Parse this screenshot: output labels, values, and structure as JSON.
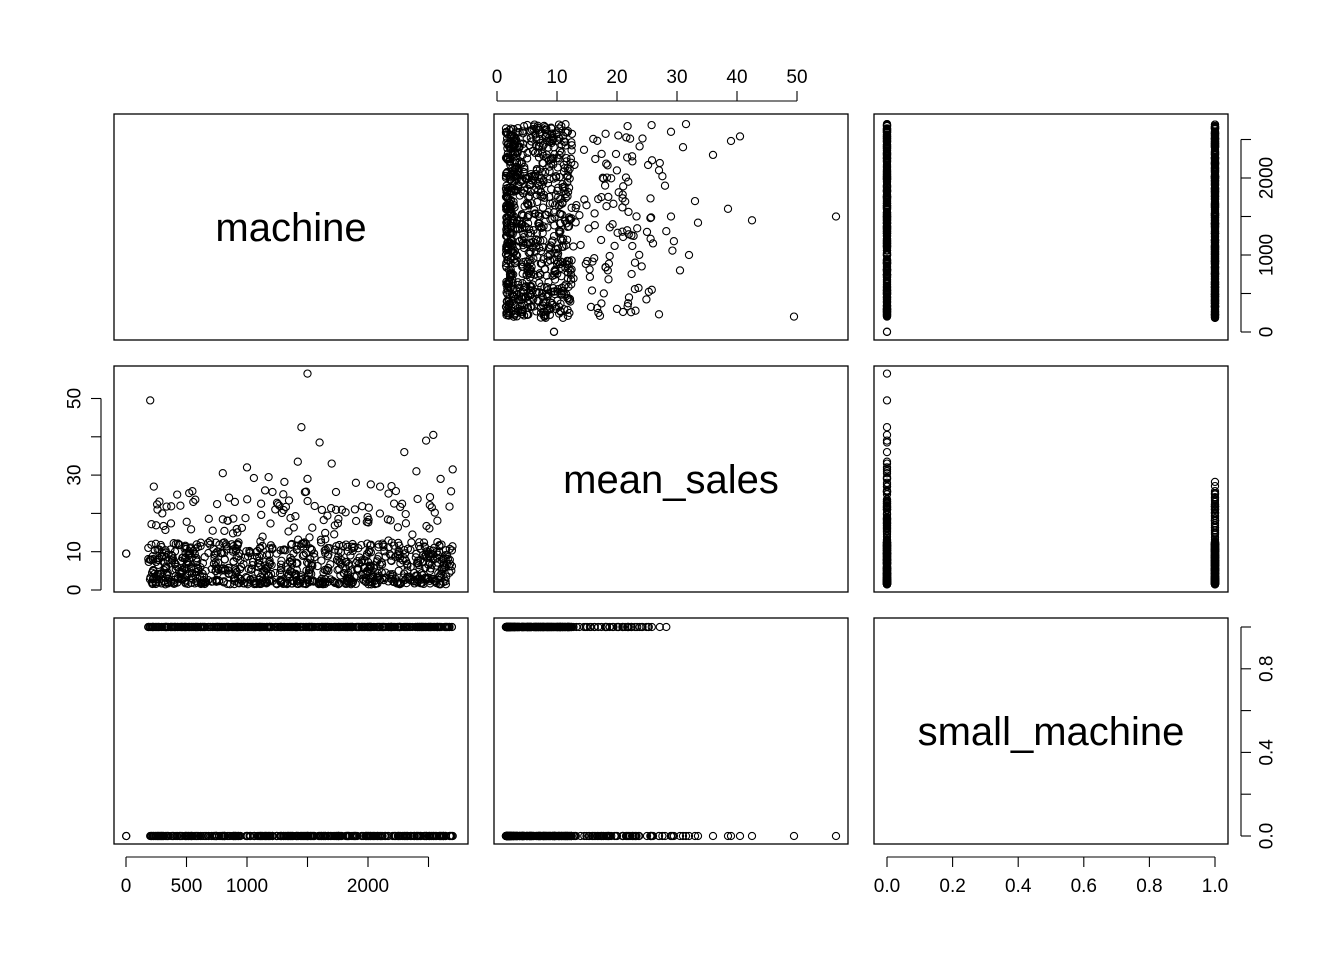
{
  "chart_data": {
    "type": "scatter",
    "variables": [
      "machine",
      "mean_sales",
      "small_machine"
    ],
    "axes": {
      "machine": {
        "range": [
          0,
          2720
        ],
        "ticks": [
          0,
          500,
          1000,
          2000
        ],
        "tick_labels": [
          "0",
          "500",
          "1000",
          "2000"
        ]
      },
      "machine_right": {
        "ticks": [
          0,
          500,
          1000,
          1500,
          2000,
          2500
        ],
        "tick_labels": [
          "0",
          "1000",
          "2000"
        ],
        "labeled_ticks": [
          0,
          1000,
          2000
        ]
      },
      "mean_sales": {
        "range": [
          0,
          57
        ],
        "ticks": [
          0,
          10,
          20,
          30,
          40,
          50
        ],
        "tick_labels": [
          "0",
          "10",
          "20",
          "30",
          "40",
          "50"
        ]
      },
      "mean_sales_left": {
        "ticks": [
          0,
          10,
          20,
          30,
          40,
          50
        ],
        "labeled_ticks": [
          0,
          10,
          30,
          50
        ],
        "tick_labels": [
          "0",
          "10",
          "30",
          "50"
        ]
      },
      "small_machine": {
        "range": [
          0,
          1
        ],
        "ticks": [
          0,
          0.2,
          0.4,
          0.6,
          0.8,
          1.0
        ],
        "tick_labels": [
          "0.0",
          "0.2",
          "0.4",
          "0.6",
          "0.8",
          "1.0"
        ]
      }
    },
    "diagonal_labels": [
      "machine",
      "mean_sales",
      "small_machine"
    ],
    "observations_sample": {
      "note_free": true,
      "machine": [
        2,
        180,
        190,
        195,
        200,
        230,
        260,
        300,
        400,
        500,
        640,
        800,
        900,
        1000,
        1100,
        1260,
        1400,
        1450,
        1500,
        1520,
        1600,
        1800,
        2100,
        2300,
        2480,
        2540,
        2600,
        2640,
        2700
      ],
      "mean_sales": [
        9.5,
        49.5,
        27,
        5,
        6.8,
        3,
        8,
        4.5,
        12,
        6,
        22.5,
        30,
        8,
        21,
        26,
        35,
        56,
        43,
        29,
        38,
        11,
        33,
        36,
        9,
        39,
        40,
        30,
        22,
        14
      ],
      "small_machine": [
        0,
        0,
        1,
        1,
        0,
        1,
        0,
        1,
        0,
        1,
        0,
        0,
        1,
        0,
        1,
        0,
        0,
        0,
        1,
        0,
        1,
        0,
        0,
        1,
        0,
        0,
        1,
        0,
        1
      ]
    },
    "notable_points": [
      {
        "machine": 2,
        "mean_sales": 9.5,
        "small_machine": 0
      },
      {
        "machine": 200,
        "mean_sales": 49.5,
        "small_machine": 0
      },
      {
        "machine": 1500,
        "mean_sales": 56.5,
        "small_machine": 0
      },
      {
        "machine": 1450,
        "mean_sales": 42.5,
        "small_machine": 0
      },
      {
        "machine": 2540,
        "mean_sales": 40.5,
        "small_machine": 0
      },
      {
        "machine": 2480,
        "mean_sales": 39,
        "small_machine": 0
      },
      {
        "machine": 2300,
        "mean_sales": 36,
        "small_machine": 0
      },
      {
        "machine": 1600,
        "mean_sales": 38.5,
        "small_machine": 0
      },
      {
        "machine": 1420,
        "mean_sales": 33.5,
        "small_machine": 0
      }
    ]
  }
}
